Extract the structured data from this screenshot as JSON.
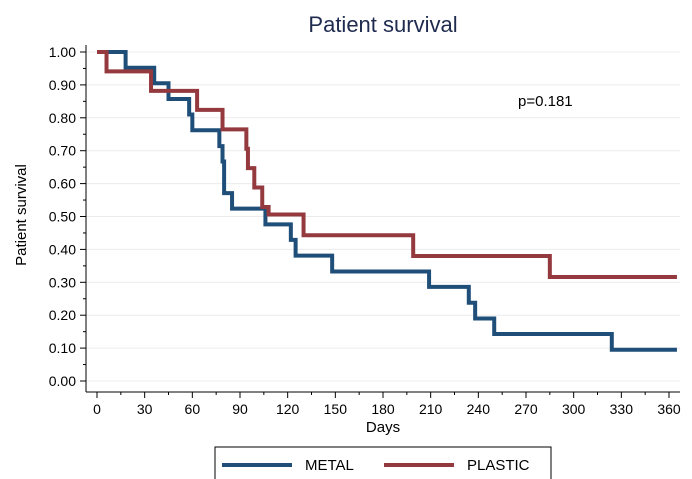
{
  "chart_data": {
    "type": "line",
    "title": "Patient survival",
    "xlabel": "Days",
    "ylabel": "Patient survival",
    "xlim": [
      -5,
      370
    ],
    "ylim": [
      0,
      1
    ],
    "x_ticks": [
      0,
      30,
      60,
      90,
      120,
      150,
      180,
      210,
      240,
      270,
      300,
      330,
      360
    ],
    "y_ticks": [
      0,
      0.1,
      0.2,
      0.3,
      0.4,
      0.5,
      0.6,
      0.7,
      0.8,
      0.9,
      1.0
    ],
    "y_tick_labels": [
      "0.00",
      "0.10",
      "0.20",
      "0.30",
      "0.40",
      "0.50",
      "0.60",
      "0.70",
      "0.80",
      "0.90",
      "1.00"
    ],
    "grid": true,
    "step": true,
    "legend_position": "bottom",
    "annotation": "p=0.181",
    "series": [
      {
        "name": "METAL",
        "color": "#1f4e79",
        "x": [
          0,
          18,
          36,
          45,
          58,
          60,
          77,
          79,
          80,
          85,
          106,
          122,
          125,
          148,
          209,
          234,
          238,
          250,
          324,
          365
        ],
        "y": [
          1.0,
          0.952,
          0.905,
          0.857,
          0.81,
          0.762,
          0.714,
          0.667,
          0.571,
          0.524,
          0.476,
          0.429,
          0.381,
          0.333,
          0.286,
          0.238,
          0.19,
          0.143,
          0.095,
          0.095
        ]
      },
      {
        "name": "PLASTIC",
        "color": "#943a3f",
        "x": [
          0,
          6,
          34,
          45,
          63,
          79,
          94,
          95,
          99,
          104,
          108,
          130,
          199,
          285,
          365
        ],
        "y": [
          1.0,
          0.941,
          0.882,
          0.882,
          0.824,
          0.765,
          0.706,
          0.647,
          0.588,
          0.529,
          0.506,
          0.443,
          0.38,
          0.316,
          0.316
        ]
      }
    ]
  }
}
